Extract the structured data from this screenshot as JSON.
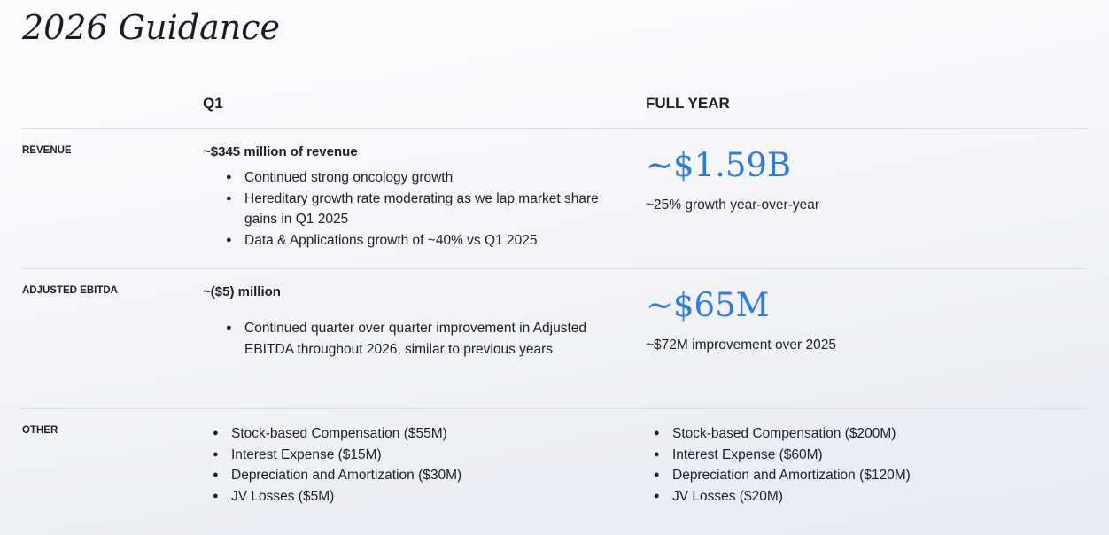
{
  "title": "2026 Guidance",
  "columns": [
    "Q1",
    "FULL YEAR"
  ],
  "rows": [
    {
      "label": "REVENUE",
      "q1": {
        "headline": "~$345 million of revenue",
        "bullets": [
          "Continued strong oncology growth",
          "Hereditary growth rate moderating as we lap market share gains in Q1 2025",
          "Data & Applications growth of ~40% vs Q1 2025"
        ]
      },
      "full_year": {
        "big": "~$1.59B",
        "note": "~25% growth year-over-year"
      }
    },
    {
      "label": "ADJUSTED EBITDA",
      "q1": {
        "headline": "~($5) million",
        "bullets": [
          "Continued quarter over quarter improvement in Adjusted EBITDA throughout 2026, similar to previous years"
        ]
      },
      "full_year": {
        "big": "~$65M",
        "note": "~$72M improvement over 2025"
      }
    },
    {
      "label": "OTHER",
      "q1": {
        "bullets": [
          "Stock-based Compensation ($55M)",
          "Interest Expense ($15M)",
          "Depreciation and Amortization ($30M)",
          "JV Losses ($5M)"
        ]
      },
      "full_year": {
        "bullets": [
          "Stock-based Compensation ($200M)",
          "Interest Expense ($60M)",
          "Depreciation and Amortization ($120M)",
          "JV Losses ($20M)"
        ]
      }
    }
  ]
}
